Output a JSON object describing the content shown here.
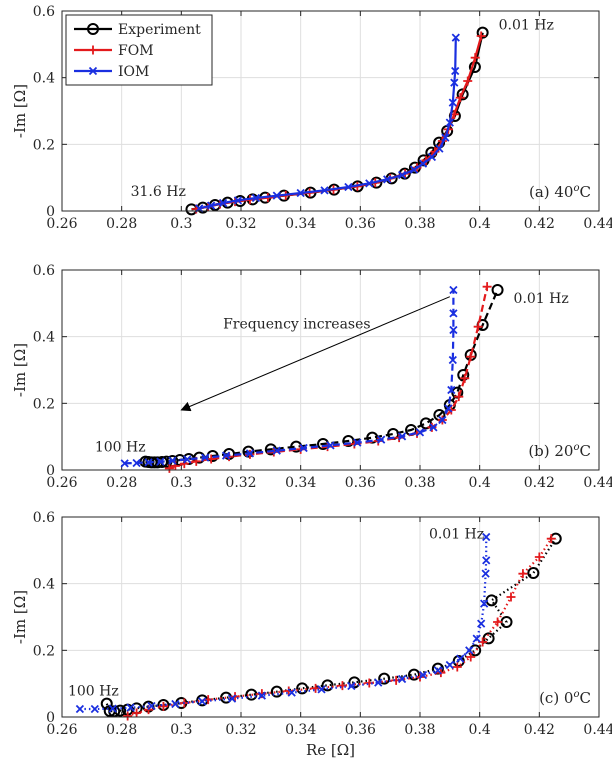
{
  "chart_data": [
    {
      "type": "line",
      "xlim": [
        0.26,
        0.44
      ],
      "ylim": [
        0,
        0.6
      ],
      "xticks": [
        "0.26",
        "0.28",
        "0.3",
        "0.32",
        "0.34",
        "0.36",
        "0.38",
        "0.4",
        "0.42",
        "0.44"
      ],
      "yticks": [
        "0",
        "0.2",
        "0.4",
        "0.6"
      ],
      "xlabel": "",
      "ylabel": "-Im [Ω]",
      "panel_label": "(a) 40°C",
      "legend": {
        "placement": "top-left",
        "entries": [
          "Experiment",
          "FOM",
          "IOM"
        ]
      },
      "grid": true,
      "annotations": [
        {
          "text": "0.01 Hz",
          "x": 0.403,
          "y": 0.535
        },
        {
          "text": "31.6 Hz",
          "x": 0.283,
          "y": 0.06
        }
      ],
      "series": [
        {
          "name": "Experiment",
          "color": "#000000",
          "marker": "circle",
          "line": "solid",
          "x": [
            0.3034,
            0.3072,
            0.3113,
            0.3155,
            0.3197,
            0.3239,
            0.3281,
            0.3344,
            0.3433,
            0.3512,
            0.3591,
            0.3654,
            0.3705,
            0.3749,
            0.3783,
            0.3812,
            0.3838,
            0.3864,
            0.3891,
            0.3917,
            0.3943,
            0.3984,
            0.401
          ],
          "y": [
            0.005,
            0.01,
            0.018,
            0.025,
            0.03,
            0.035,
            0.04,
            0.046,
            0.055,
            0.064,
            0.074,
            0.085,
            0.098,
            0.112,
            0.13,
            0.152,
            0.175,
            0.205,
            0.24,
            0.285,
            0.35,
            0.432,
            0.535
          ]
        },
        {
          "name": "FOM",
          "color": "#e31a1c",
          "marker": "plus",
          "line": "solid",
          "x": [
            0.305,
            0.309,
            0.313,
            0.318,
            0.323,
            0.329,
            0.335,
            0.343,
            0.351,
            0.359,
            0.365,
            0.37,
            0.375,
            0.379,
            0.382,
            0.385,
            0.3875,
            0.3895,
            0.3915,
            0.3935,
            0.396,
            0.3985,
            0.4005
          ],
          "y": [
            0.006,
            0.013,
            0.021,
            0.028,
            0.034,
            0.04,
            0.047,
            0.055,
            0.064,
            0.074,
            0.085,
            0.098,
            0.112,
            0.13,
            0.152,
            0.178,
            0.21,
            0.245,
            0.29,
            0.34,
            0.39,
            0.46,
            0.525
          ]
        },
        {
          "name": "IOM",
          "color": "#1a2fe0",
          "marker": "x",
          "line": "solid",
          "x": [
            0.306,
            0.31,
            0.314,
            0.319,
            0.325,
            0.332,
            0.34,
            0.348,
            0.356,
            0.363,
            0.369,
            0.374,
            0.378,
            0.381,
            0.384,
            0.3865,
            0.3885,
            0.39,
            0.391,
            0.3915,
            0.3918,
            0.392
          ],
          "y": [
            0.008,
            0.016,
            0.024,
            0.032,
            0.039,
            0.046,
            0.054,
            0.062,
            0.072,
            0.083,
            0.095,
            0.108,
            0.124,
            0.142,
            0.162,
            0.187,
            0.22,
            0.265,
            0.325,
            0.385,
            0.42,
            0.52
          ]
        }
      ]
    },
    {
      "type": "line",
      "xlim": [
        0.26,
        0.44
      ],
      "ylim": [
        0,
        0.6
      ],
      "xticks": [
        "0.26",
        "0.28",
        "0.3",
        "0.32",
        "0.34",
        "0.36",
        "0.38",
        "0.4",
        "0.42",
        "0.44"
      ],
      "yticks": [
        "0",
        "0.2",
        "0.4",
        "0.6"
      ],
      "xlabel": "",
      "ylabel": "-Im [Ω]",
      "panel_label": "(b) 20°C",
      "grid": true,
      "annotations": [
        {
          "text": "0.01 Hz",
          "x": 0.408,
          "y": 0.54
        },
        {
          "text": "100 Hz",
          "x": 0.271,
          "y": 0.07
        },
        {
          "text": "Frequency increases",
          "x": 0.314,
          "y": 0.44
        }
      ],
      "arrow": {
        "from": [
          0.39,
          0.52
        ],
        "to": [
          0.3,
          0.18
        ]
      },
      "series": [
        {
          "name": "Experiment",
          "color": "#000000",
          "marker": "circle",
          "line": "dashed",
          "x": [
            0.288,
            0.289,
            0.29,
            0.291,
            0.292,
            0.2935,
            0.295,
            0.297,
            0.2995,
            0.3025,
            0.306,
            0.3105,
            0.316,
            0.3225,
            0.33,
            0.3385,
            0.3475,
            0.356,
            0.364,
            0.371,
            0.377,
            0.382,
            0.3865,
            0.39,
            0.3925,
            0.3945,
            0.397,
            0.401,
            0.406
          ],
          "y": [
            0.025,
            0.024,
            0.023,
            0.023,
            0.023,
            0.024,
            0.025,
            0.027,
            0.03,
            0.033,
            0.037,
            0.042,
            0.048,
            0.055,
            0.062,
            0.07,
            0.078,
            0.087,
            0.097,
            0.108,
            0.12,
            0.14,
            0.165,
            0.195,
            0.232,
            0.285,
            0.345,
            0.435,
            0.54
          ]
        },
        {
          "name": "FOM",
          "color": "#e31a1c",
          "marker": "plus",
          "line": "dashed",
          "x": [
            0.296,
            0.298,
            0.301,
            0.305,
            0.31,
            0.316,
            0.323,
            0.331,
            0.34,
            0.349,
            0.358,
            0.366,
            0.373,
            0.379,
            0.384,
            0.3875,
            0.3905,
            0.393,
            0.395,
            0.397,
            0.3995,
            0.4025
          ],
          "y": [
            0.005,
            0.012,
            0.019,
            0.026,
            0.033,
            0.04,
            0.047,
            0.054,
            0.062,
            0.07,
            0.078,
            0.087,
            0.097,
            0.11,
            0.128,
            0.15,
            0.18,
            0.22,
            0.275,
            0.34,
            0.43,
            0.55
          ]
        },
        {
          "name": "IOM",
          "color": "#1a2fe0",
          "marker": "x",
          "line": "dashed",
          "x": [
            0.281,
            0.285,
            0.289,
            0.293,
            0.297,
            0.302,
            0.308,
            0.315,
            0.323,
            0.332,
            0.341,
            0.35,
            0.359,
            0.367,
            0.374,
            0.38,
            0.3845,
            0.3875,
            0.3895,
            0.3905,
            0.391,
            0.3912,
            0.3912,
            0.3912
          ],
          "y": [
            0.02,
            0.021,
            0.023,
            0.025,
            0.028,
            0.032,
            0.037,
            0.043,
            0.05,
            0.058,
            0.066,
            0.074,
            0.082,
            0.091,
            0.101,
            0.113,
            0.128,
            0.15,
            0.185,
            0.24,
            0.33,
            0.42,
            0.47,
            0.54
          ]
        }
      ]
    },
    {
      "type": "line",
      "xlim": [
        0.26,
        0.44
      ],
      "ylim": [
        0,
        0.6
      ],
      "xticks": [
        "0.26",
        "0.28",
        "0.3",
        "0.32",
        "0.34",
        "0.36",
        "0.38",
        "0.4",
        "0.42",
        "0.44"
      ],
      "yticks": [
        "0",
        "0.2",
        "0.4",
        "0.6"
      ],
      "xlabel": "Re [Ω]",
      "ylabel": "-Im [Ω]",
      "panel_label": "(c) 0°C",
      "grid": true,
      "annotations": [
        {
          "text": "0.01 Hz",
          "x": 0.383,
          "y": 0.55
        },
        {
          "text": "100 Hz",
          "x": 0.262,
          "y": 0.08
        }
      ],
      "series": [
        {
          "name": "Experiment",
          "color": "#000000",
          "marker": "circle",
          "line": "dotted",
          "x": [
            0.275,
            0.276,
            0.2775,
            0.2795,
            0.282,
            0.285,
            0.289,
            0.294,
            0.3,
            0.307,
            0.315,
            0.3235,
            0.332,
            0.3405,
            0.349,
            0.358,
            0.368,
            0.378,
            0.386,
            0.393,
            0.3985,
            0.403,
            0.409,
            0.404,
            0.418,
            0.4255
          ],
          "y": [
            0.04,
            0.018,
            0.017,
            0.019,
            0.022,
            0.026,
            0.031,
            0.036,
            0.042,
            0.05,
            0.058,
            0.067,
            0.076,
            0.086,
            0.095,
            0.104,
            0.115,
            0.127,
            0.145,
            0.168,
            0.2,
            0.236,
            0.285,
            0.35,
            0.432,
            0.535
          ]
        },
        {
          "name": "FOM",
          "color": "#e31a1c",
          "marker": "plus",
          "line": "dotted",
          "x": [
            0.282,
            0.285,
            0.289,
            0.294,
            0.301,
            0.309,
            0.318,
            0.327,
            0.336,
            0.345,
            0.354,
            0.363,
            0.372,
            0.38,
            0.387,
            0.3925,
            0.397,
            0.401,
            0.406,
            0.4105,
            0.4145,
            0.42,
            0.424
          ],
          "y": [
            0.003,
            0.012,
            0.022,
            0.032,
            0.042,
            0.052,
            0.061,
            0.07,
            0.078,
            0.086,
            0.094,
            0.102,
            0.11,
            0.12,
            0.133,
            0.15,
            0.18,
            0.225,
            0.285,
            0.36,
            0.43,
            0.48,
            0.535
          ]
        },
        {
          "name": "IOM",
          "color": "#1a2fe0",
          "marker": "x",
          "line": "dotted",
          "x": [
            0.266,
            0.271,
            0.277,
            0.283,
            0.29,
            0.298,
            0.307,
            0.317,
            0.327,
            0.337,
            0.347,
            0.357,
            0.366,
            0.374,
            0.381,
            0.386,
            0.39,
            0.3935,
            0.3965,
            0.399,
            0.4005,
            0.4015,
            0.402,
            0.4022,
            0.4022
          ],
          "y": [
            0.024,
            0.024,
            0.025,
            0.028,
            0.033,
            0.039,
            0.047,
            0.055,
            0.064,
            0.073,
            0.083,
            0.093,
            0.103,
            0.114,
            0.126,
            0.14,
            0.156,
            0.175,
            0.2,
            0.235,
            0.28,
            0.34,
            0.43,
            0.47,
            0.54
          ]
        }
      ]
    }
  ]
}
